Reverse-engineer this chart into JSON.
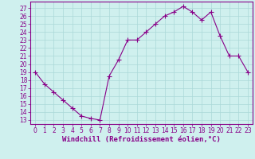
{
  "x": [
    0,
    1,
    2,
    3,
    4,
    5,
    6,
    7,
    8,
    9,
    10,
    11,
    12,
    13,
    14,
    15,
    16,
    17,
    18,
    19,
    20,
    21,
    22,
    23
  ],
  "y": [
    19,
    17.5,
    16.5,
    15.5,
    14.5,
    13.5,
    13.2,
    13.0,
    18.5,
    20.5,
    23.0,
    23.0,
    24.0,
    25.0,
    26.0,
    26.5,
    27.2,
    26.5,
    25.5,
    26.5,
    23.5,
    21.0,
    21.0,
    19.0
  ],
  "line_color": "#880088",
  "marker": "+",
  "marker_color": "#880088",
  "bg_color": "#cff0ee",
  "grid_color": "#aad8d8",
  "axis_color": "#880088",
  "xlabel": "Windchill (Refroidissement éolien,°C)",
  "ylabel": "",
  "title": "",
  "ylim": [
    12.5,
    27.8
  ],
  "xlim": [
    -0.5,
    23.5
  ],
  "yticks": [
    13,
    14,
    15,
    16,
    17,
    18,
    19,
    20,
    21,
    22,
    23,
    24,
    25,
    26,
    27
  ],
  "xticks": [
    0,
    1,
    2,
    3,
    4,
    5,
    6,
    7,
    8,
    9,
    10,
    11,
    12,
    13,
    14,
    15,
    16,
    17,
    18,
    19,
    20,
    21,
    22,
    23
  ],
  "tick_color": "#880088",
  "tick_fontsize": 5.5,
  "xlabel_fontsize": 6.5,
  "marker_size": 4,
  "line_width": 0.8
}
